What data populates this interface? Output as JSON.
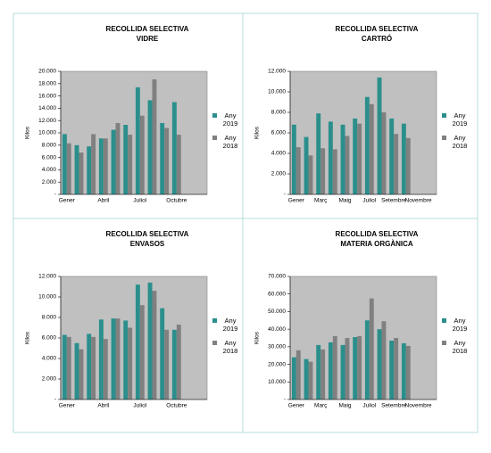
{
  "chart_data": [
    {
      "type": "bar",
      "title": "RECOLLIDA SELECTIVA",
      "subtitle": "VIDRE",
      "y_label": "Kilos",
      "categories": [
        "Gener",
        null,
        null,
        "Abril",
        null,
        null,
        "Juliol",
        null,
        null,
        "Octubre",
        null,
        null
      ],
      "series": [
        {
          "name": "Any 2019",
          "color": "#2b8f8c",
          "values": [
            9800,
            8000,
            7800,
            9100,
            10500,
            11300,
            17400,
            15300,
            11600,
            15000,
            null,
            null
          ]
        },
        {
          "name": "Any 2018",
          "color": "#808080",
          "values": [
            8300,
            6800,
            9800,
            9100,
            11600,
            9700,
            12800,
            18700,
            10800,
            9700,
            null,
            null
          ]
        }
      ],
      "ylim": [
        0,
        20000
      ],
      "yticks": [
        {
          "value": 0,
          "label": "-"
        },
        {
          "value": 2000,
          "label": "2.000"
        },
        {
          "value": 4000,
          "label": "4.000"
        },
        {
          "value": 6000,
          "label": "6.000"
        },
        {
          "value": 8000,
          "label": "8.000"
        },
        {
          "value": 10000,
          "label": "10.000"
        },
        {
          "value": 12000,
          "label": "12.000"
        },
        {
          "value": 14000,
          "label": "14.000"
        },
        {
          "value": 16000,
          "label": "16.000"
        },
        {
          "value": 18000,
          "label": "18.000"
        },
        {
          "value": 20000,
          "label": "20.000"
        }
      ],
      "grid": false,
      "legend": "right"
    },
    {
      "type": "bar",
      "title": "RECOLLIDA SELECTIVA",
      "subtitle": "CARTRÓ",
      "y_label": "Kilos",
      "categories": [
        "Gener",
        null,
        "Març",
        null,
        "Maig",
        null,
        "Juliol",
        null,
        "Setembre",
        null,
        "Novembre",
        null
      ],
      "series": [
        {
          "name": "Any 2019",
          "color": "#2b8f8c",
          "values": [
            6800,
            5600,
            7900,
            7100,
            6800,
            7400,
            9500,
            11400,
            7400,
            6900,
            null,
            null
          ]
        },
        {
          "name": "Any 2018",
          "color": "#808080",
          "values": [
            4600,
            3800,
            4500,
            4400,
            5700,
            6900,
            8800,
            8000,
            5900,
            5500,
            null,
            null
          ]
        }
      ],
      "ylim": [
        0,
        12000
      ],
      "yticks": [
        {
          "value": 0,
          "label": "-"
        },
        {
          "value": 2000,
          "label": "2.000"
        },
        {
          "value": 4000,
          "label": "4.000"
        },
        {
          "value": 6000,
          "label": "6.000"
        },
        {
          "value": 8000,
          "label": "8.000"
        },
        {
          "value": 10000,
          "label": "10.000"
        },
        {
          "value": 12000,
          "label": "12.000"
        }
      ],
      "grid": false,
      "legend": "right"
    },
    {
      "type": "bar",
      "title": "RECOLLIDA SELECTIVA",
      "subtitle": "ENVASOS",
      "y_label": "Kilos",
      "categories": [
        "Gener",
        null,
        null,
        "Abril",
        null,
        null,
        "Juliol",
        null,
        null,
        "Octubre",
        null,
        null
      ],
      "series": [
        {
          "name": "Any 2019",
          "color": "#2b8f8c",
          "values": [
            6300,
            5500,
            6400,
            7800,
            7900,
            7700,
            11200,
            11400,
            8900,
            6800,
            null,
            null
          ]
        },
        {
          "name": "Any 2018",
          "color": "#808080",
          "values": [
            6100,
            4900,
            6100,
            5900,
            7900,
            7000,
            9200,
            10600,
            6800,
            7300,
            null,
            null
          ]
        }
      ],
      "ylim": [
        0,
        12000
      ],
      "yticks": [
        {
          "value": 0,
          "label": "-"
        },
        {
          "value": 2000,
          "label": "2.000"
        },
        {
          "value": 4000,
          "label": "4.000"
        },
        {
          "value": 6000,
          "label": "6.000"
        },
        {
          "value": 8000,
          "label": "8.000"
        },
        {
          "value": 10000,
          "label": "10.000"
        },
        {
          "value": 12000,
          "label": "12.000"
        }
      ],
      "grid": false,
      "legend": "right"
    },
    {
      "type": "bar",
      "title": "RECOLLIDA SELECTIVA",
      "subtitle": "MATERIA ORGÀNICA",
      "y_label": "Kilos",
      "categories": [
        "Gener",
        null,
        "Març",
        null,
        "Maig",
        null,
        "Juliol",
        null,
        "Setembre",
        null,
        "Novembre",
        null
      ],
      "series": [
        {
          "name": "Any 2019",
          "color": "#2b8f8c",
          "values": [
            24000,
            23000,
            31000,
            32500,
            31000,
            35500,
            45000,
            40000,
            33500,
            32000,
            null,
            null
          ]
        },
        {
          "name": "Any 2018",
          "color": "#808080",
          "values": [
            28000,
            21500,
            28500,
            36000,
            35000,
            36000,
            57500,
            44500,
            35000,
            30500,
            null,
            null
          ]
        }
      ],
      "ylim": [
        0,
        70000
      ],
      "yticks": [
        {
          "value": 0,
          "label": "-"
        },
        {
          "value": 10000,
          "label": "10.000"
        },
        {
          "value": 20000,
          "label": "20.000"
        },
        {
          "value": 30000,
          "label": "30.000"
        },
        {
          "value": 40000,
          "label": "40.000"
        },
        {
          "value": 50000,
          "label": "50.000"
        },
        {
          "value": 60000,
          "label": "60.000"
        },
        {
          "value": 70000,
          "label": "70.000"
        }
      ],
      "grid": false,
      "legend": "right"
    }
  ]
}
